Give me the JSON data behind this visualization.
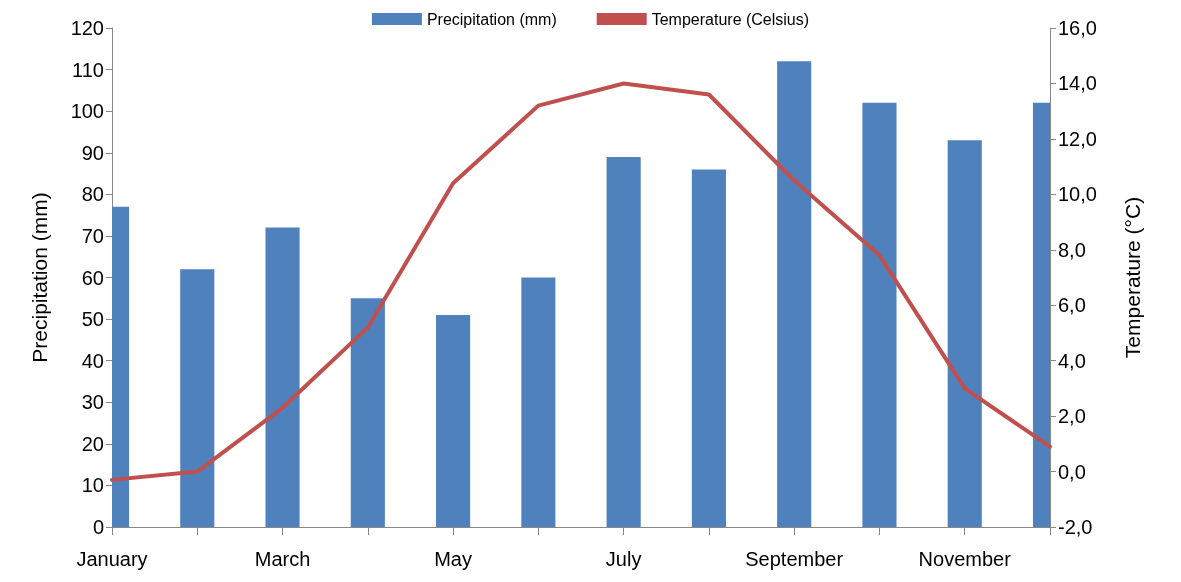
{
  "chart_data": {
    "type": "bar",
    "categories": [
      "January",
      null,
      "March",
      null,
      "May",
      null,
      "July",
      null,
      "September",
      null,
      "November",
      null
    ],
    "series": [
      {
        "name": "Precipitation (mm)",
        "color": "#4f81bd",
        "values": [
          77,
          62,
          72,
          55,
          51,
          60,
          89,
          86,
          112,
          102,
          93,
          102
        ]
      },
      {
        "name": "Temperature (Celsius)",
        "type": "line",
        "axis": "y2",
        "color": "#c0504d",
        "values": [
          -0.3,
          0.0,
          2.3,
          5.2,
          10.4,
          13.2,
          14.0,
          13.6,
          10.5,
          7.8,
          3.0,
          0.9
        ]
      }
    ],
    "ylabel": "Precipitation (mm)",
    "y2label": "Temperature (°C)",
    "ylim": [
      0,
      120
    ],
    "yticks": [
      0,
      10,
      20,
      30,
      40,
      50,
      60,
      70,
      80,
      90,
      100,
      110,
      120
    ],
    "y2lim": [
      -2,
      16
    ],
    "y2ticks": [
      {
        "value": -2,
        "label": "-2,0"
      },
      {
        "value": 0,
        "label": "0,0"
      },
      {
        "value": 2,
        "label": "2,0"
      },
      {
        "value": 4,
        "label": "4,0"
      },
      {
        "value": 6,
        "label": "6,0"
      },
      {
        "value": 8,
        "label": "8,0"
      },
      {
        "value": 10,
        "label": "10,0"
      },
      {
        "value": 12,
        "label": "12,0"
      },
      {
        "value": 14,
        "label": "14,0"
      },
      {
        "value": 16,
        "label": "16,0"
      }
    ],
    "legend": "top",
    "grid": false,
    "marker": "none",
    "line_style": "solid"
  }
}
